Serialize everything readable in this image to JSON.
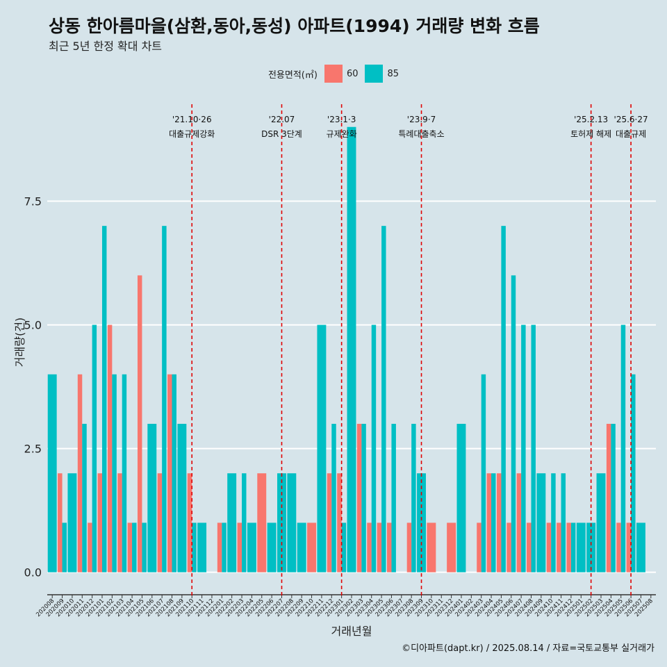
{
  "title": "상동 한아름마을(삼환,동아,동성) 아파트(1994) 거래량 변화 흐름",
  "subtitle": "최근 5년 한정 확대 차트",
  "caption": "©디아파트(dapt.kr) / 2025.08.14 / 자료=국토교통부 실거래가",
  "legend": {
    "title": "전용면적(㎡)"
  },
  "colors": {
    "60": "#f8766d",
    "85": "#00bfc4",
    "background": "#d6e4ea",
    "event_line": "#e00000"
  },
  "chart_data": {
    "type": "bar",
    "title": "상동 한아름마을(삼환,동아,동성) 아파트(1994) 거래량 변화 흐름",
    "xlabel": "거래년월",
    "ylabel": "거래량(건)",
    "ylim": [
      -0.3,
      9.6
    ],
    "yticks": [
      0.0,
      2.5,
      5.0,
      7.5
    ],
    "ytick_labels": [
      "0.0",
      "2.5",
      "5.0",
      "7.5"
    ],
    "categories": [
      "202008",
      "202009",
      "202010",
      "202011",
      "202012",
      "202101",
      "202102",
      "202103",
      "202104",
      "202105",
      "202106",
      "202107",
      "202108",
      "202109",
      "202110",
      "202111",
      "202112",
      "202201",
      "202202",
      "202203",
      "202204",
      "202205",
      "202206",
      "202207",
      "202208",
      "202209",
      "202210",
      "202211",
      "202212",
      "202301",
      "202302",
      "202303",
      "202304",
      "202305",
      "202306",
      "202307",
      "202308",
      "202309",
      "202310",
      "202311",
      "202312",
      "202401",
      "202402",
      "202403",
      "202404",
      "202405",
      "202406",
      "202407",
      "202408",
      "202409",
      "202410",
      "202411",
      "202412",
      "202501",
      "202502",
      "202503",
      "202504",
      "202505",
      "202506",
      "202507",
      "202508"
    ],
    "series": [
      {
        "name": "60",
        "values": [
          0,
          2,
          0,
          4,
          1,
          2,
          5,
          2,
          1,
          6,
          0,
          2,
          4,
          0,
          2,
          0,
          0,
          1,
          0,
          1,
          0,
          2,
          0,
          0,
          0,
          0,
          1,
          0,
          2,
          2,
          0,
          3,
          1,
          1,
          1,
          0,
          1,
          0,
          1,
          0,
          1,
          0,
          0,
          1,
          2,
          2,
          1,
          2,
          1,
          0,
          1,
          1,
          1,
          0,
          0,
          0,
          3,
          1,
          1,
          0,
          0
        ]
      },
      {
        "name": "85",
        "values": [
          4,
          1,
          2,
          3,
          5,
          7,
          4,
          4,
          1,
          1,
          3,
          7,
          4,
          3,
          1,
          1,
          0,
          1,
          2,
          2,
          1,
          0,
          1,
          2,
          2,
          1,
          0,
          5,
          3,
          1,
          9,
          3,
          5,
          7,
          3,
          0,
          3,
          2,
          0,
          0,
          0,
          3,
          0,
          4,
          2,
          7,
          6,
          5,
          5,
          2,
          2,
          2,
          1,
          1,
          1,
          2,
          3,
          5,
          4,
          1,
          0
        ]
      }
    ],
    "events": [
      {
        "category": "202110",
        "date": "'21.10·26",
        "label": "대출규제강화"
      },
      {
        "category": "202207",
        "date": "'22.07",
        "label": "DSR 3단계"
      },
      {
        "category": "202301",
        "date": "'23.1·3",
        "label": "규제완화"
      },
      {
        "category": "202309",
        "date": "'23.9·7",
        "label": "특례대출축소"
      },
      {
        "category": "202502",
        "date": "'25.2.13",
        "label": "토허제 해제"
      },
      {
        "category": "202506",
        "date": "'25.6·27",
        "label": "대출규제"
      }
    ]
  }
}
